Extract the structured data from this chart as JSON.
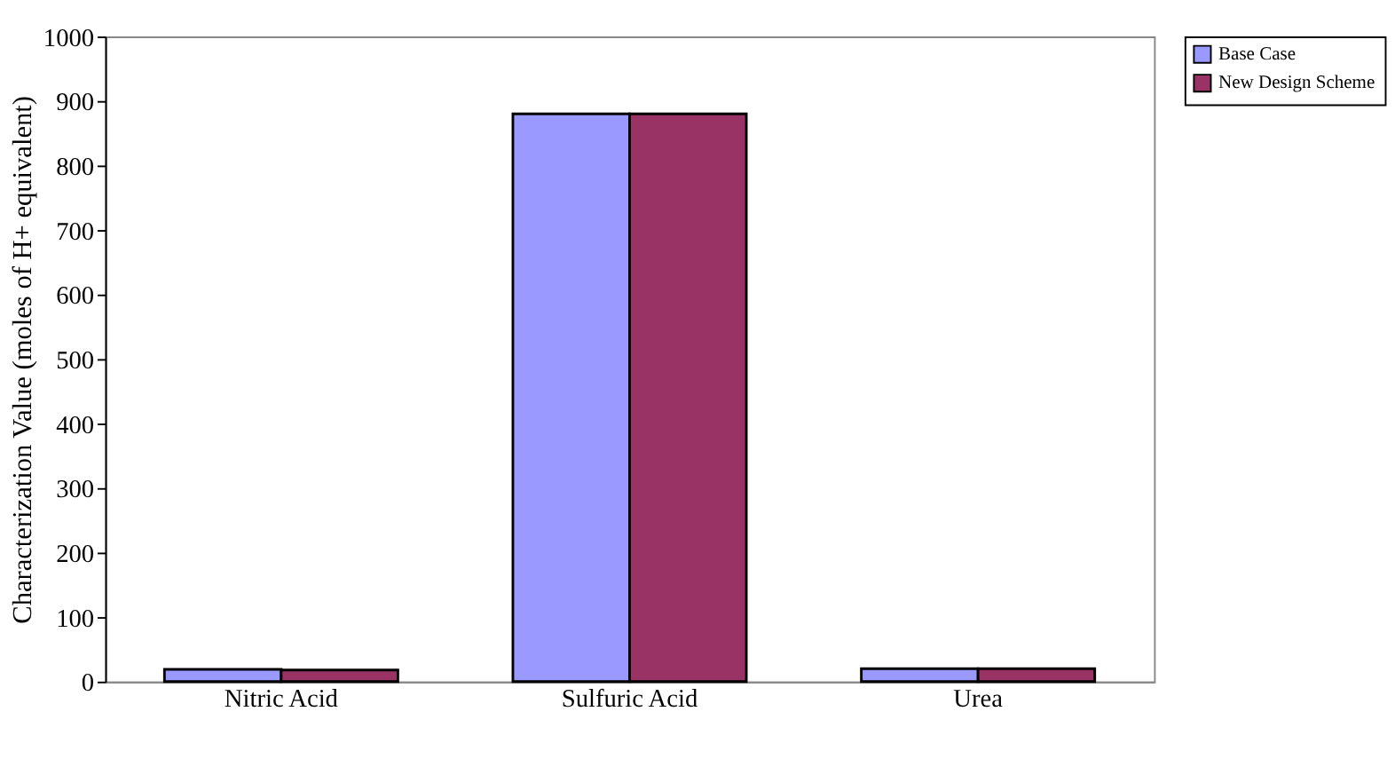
{
  "chart_data": {
    "type": "bar",
    "ylabel": "Characterization Value (moles of H+ equivalent)",
    "categories": [
      "Nitric Acid",
      "Sulfuric Acid",
      "Urea"
    ],
    "series": [
      {
        "name": "Base Case",
        "color": "#9999ff",
        "values": [
          19,
          880,
          20
        ]
      },
      {
        "name": "New Design Scheme",
        "color": "#993366",
        "values": [
          18,
          880,
          20
        ]
      }
    ],
    "ylim": [
      0,
      1000
    ],
    "yticks": [
      0,
      100,
      200,
      300,
      400,
      500,
      600,
      700,
      800,
      900,
      1000
    ],
    "grid": false,
    "legend": "right"
  }
}
